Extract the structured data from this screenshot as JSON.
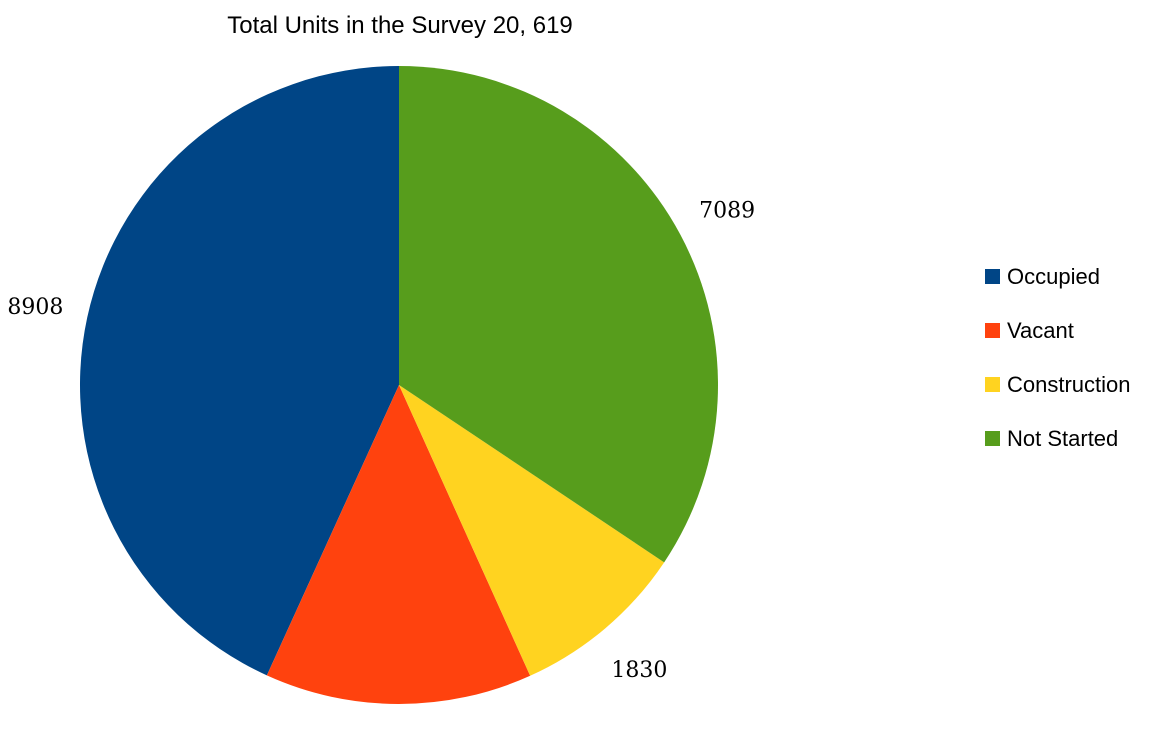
{
  "chart_data": {
    "type": "pie",
    "title": "Total Units in the Survey 20, 619",
    "categories": [
      "Occupied",
      "Vacant",
      "Construction",
      "Not Started"
    ],
    "values": [
      8908,
      2792,
      1830,
      7089
    ],
    "colors": [
      "#004586",
      "#ff420e",
      "#ffd320",
      "#579d1c"
    ],
    "legend_position": "right",
    "start_angle_deg": 0,
    "direction": "counterclockwise"
  }
}
